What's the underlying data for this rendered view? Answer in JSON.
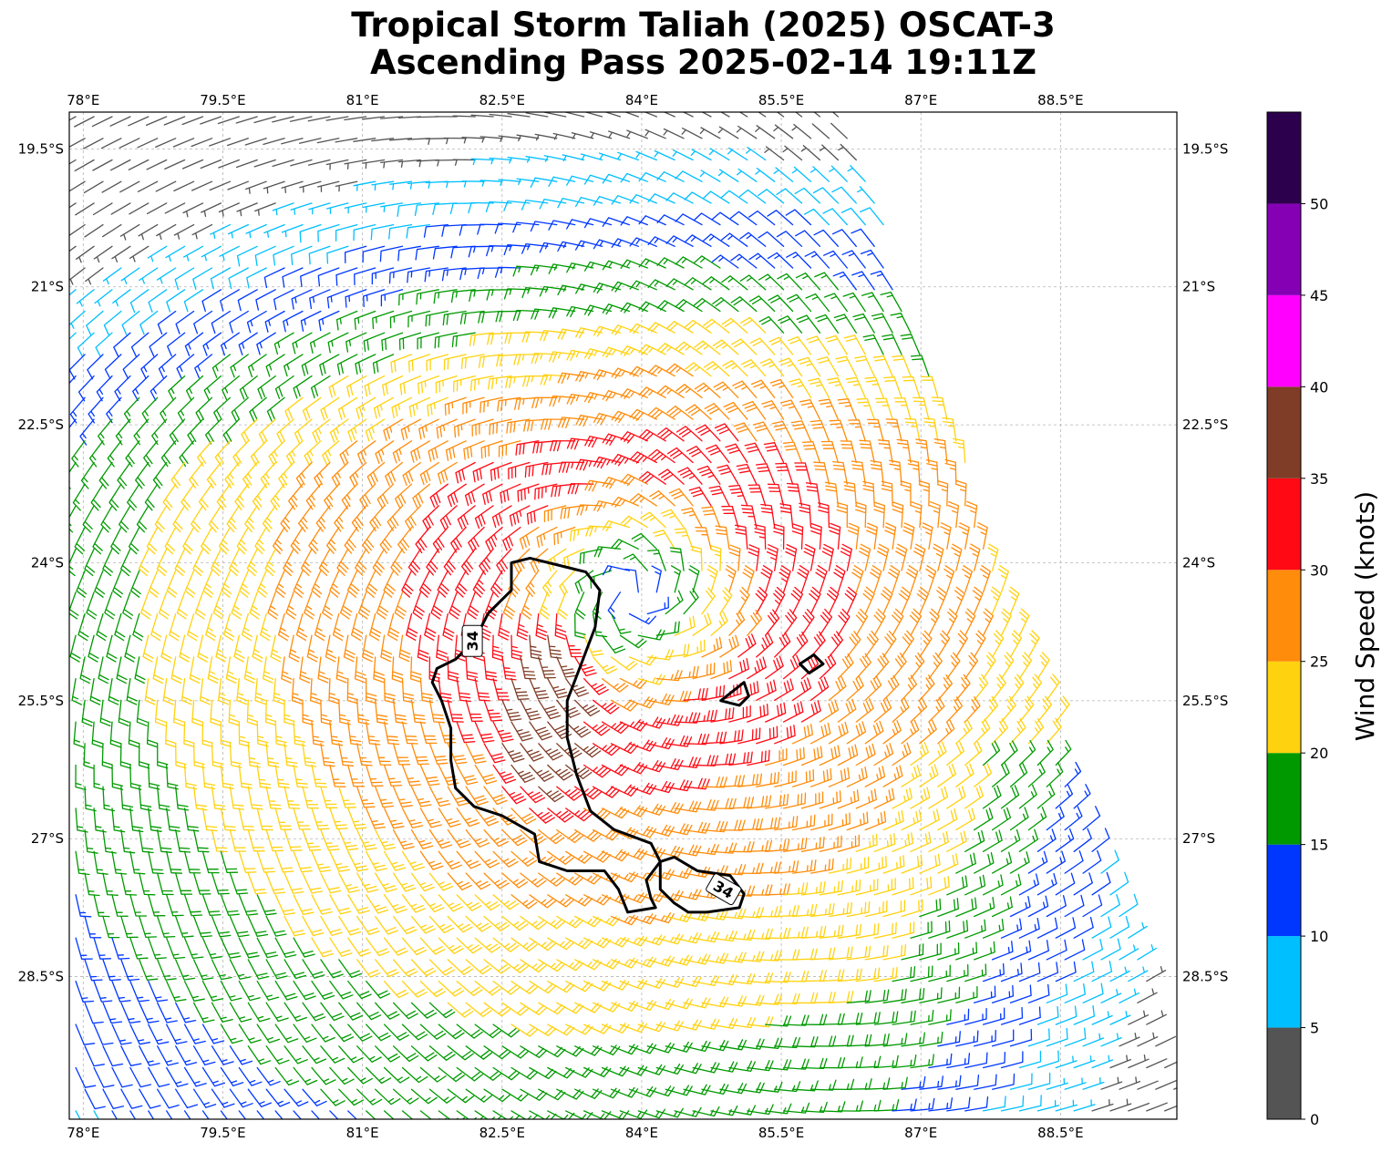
{
  "title_line1": "Tropical Storm Taliah (2025) OSCAT-3",
  "title_line2": "Ascending Pass 2025-02-14 19:11Z",
  "map": {
    "lon_range": [
      77.85,
      89.75
    ],
    "lat_range": [
      -30.05,
      -19.1
    ],
    "lon_ticks": [
      {
        "value": 78.0,
        "label": "78°E"
      },
      {
        "value": 79.5,
        "label": "79.5°E"
      },
      {
        "value": 81.0,
        "label": "81°E"
      },
      {
        "value": 82.5,
        "label": "82.5°E"
      },
      {
        "value": 84.0,
        "label": "84°E"
      },
      {
        "value": 85.5,
        "label": "85.5°E"
      },
      {
        "value": 87.0,
        "label": "87°E"
      },
      {
        "value": 88.5,
        "label": "88.5°E"
      }
    ],
    "lat_ticks": [
      {
        "value": -19.5,
        "label": "19.5°S"
      },
      {
        "value": -21.0,
        "label": "21°S"
      },
      {
        "value": -22.5,
        "label": "22.5°S"
      },
      {
        "value": -24.0,
        "label": "24°S"
      },
      {
        "value": -25.5,
        "label": "25.5°S"
      },
      {
        "value": -27.0,
        "label": "27°S"
      },
      {
        "value": -28.5,
        "label": "28.5°S"
      }
    ],
    "grid": true,
    "storm_center": {
      "lon": 83.9,
      "lat": -24.35
    },
    "swath_right_edge": [
      {
        "lon": 86.2,
        "lat": -19.1
      },
      {
        "lon": 87.0,
        "lat": -21.5
      },
      {
        "lon": 88.2,
        "lat": -25.0
      },
      {
        "lon": 89.3,
        "lat": -28.2
      },
      {
        "lon": 89.75,
        "lat": -29.4
      }
    ],
    "contour_label": "34",
    "contour_34kt_main": [
      [
        83.2,
        -24.05
      ],
      [
        83.4,
        -24.1
      ],
      [
        83.55,
        -24.3
      ],
      [
        83.5,
        -24.7
      ],
      [
        83.35,
        -25.1
      ],
      [
        83.2,
        -25.5
      ],
      [
        83.2,
        -25.9
      ],
      [
        83.3,
        -26.3
      ],
      [
        83.45,
        -26.7
      ],
      [
        83.7,
        -26.9
      ],
      [
        84.1,
        -27.05
      ],
      [
        84.2,
        -27.25
      ],
      [
        84.05,
        -27.45
      ],
      [
        84.1,
        -27.65
      ],
      [
        84.15,
        -27.75
      ],
      [
        83.85,
        -27.8
      ],
      [
        83.75,
        -27.55
      ],
      [
        83.6,
        -27.35
      ],
      [
        83.2,
        -27.35
      ],
      [
        82.9,
        -27.25
      ],
      [
        82.85,
        -26.95
      ],
      [
        82.5,
        -26.75
      ],
      [
        82.2,
        -26.65
      ],
      [
        82.0,
        -26.45
      ],
      [
        81.95,
        -26.15
      ],
      [
        81.95,
        -25.8
      ],
      [
        81.85,
        -25.5
      ],
      [
        81.75,
        -25.3
      ],
      [
        81.8,
        -25.15
      ],
      [
        82.0,
        -25.05
      ],
      [
        82.2,
        -24.85
      ],
      [
        82.35,
        -24.55
      ],
      [
        82.6,
        -24.3
      ],
      [
        82.6,
        -24.0
      ],
      [
        82.8,
        -23.95
      ],
      [
        83.2,
        -24.05
      ]
    ],
    "contour_34kt_east": [
      [
        84.2,
        -27.25
      ],
      [
        84.35,
        -27.2
      ],
      [
        84.6,
        -27.35
      ],
      [
        84.95,
        -27.4
      ],
      [
        85.1,
        -27.6
      ],
      [
        85.05,
        -27.75
      ],
      [
        84.7,
        -27.8
      ],
      [
        84.5,
        -27.8
      ],
      [
        84.35,
        -27.7
      ],
      [
        84.2,
        -27.55
      ],
      [
        84.2,
        -27.25
      ]
    ],
    "contour_34kt_small1": [
      [
        84.85,
        -25.5
      ],
      [
        85.1,
        -25.3
      ],
      [
        85.15,
        -25.45
      ],
      [
        85.05,
        -25.55
      ],
      [
        84.85,
        -25.5
      ]
    ],
    "contour_34kt_small2": [
      [
        85.7,
        -25.1
      ],
      [
        85.85,
        -25.0
      ],
      [
        85.95,
        -25.1
      ],
      [
        85.8,
        -25.2
      ],
      [
        85.7,
        -25.1
      ]
    ]
  },
  "colorbar": {
    "label": "Wind Speed (knots)",
    "colors": [
      "#545454",
      "#00bfff",
      "#0037ff",
      "#009a00",
      "#ffd20f",
      "#ff8c0a",
      "#ff0a14",
      "#7f3c26",
      "#ff00ff",
      "#8500b5",
      "#2d004e"
    ],
    "bounds": [
      0,
      5,
      10,
      15,
      20,
      25,
      30,
      35,
      40,
      45,
      50,
      55
    ],
    "tick_labels": [
      "0",
      "5",
      "10",
      "15",
      "20",
      "25",
      "30",
      "35",
      "40",
      "45",
      "50"
    ]
  }
}
